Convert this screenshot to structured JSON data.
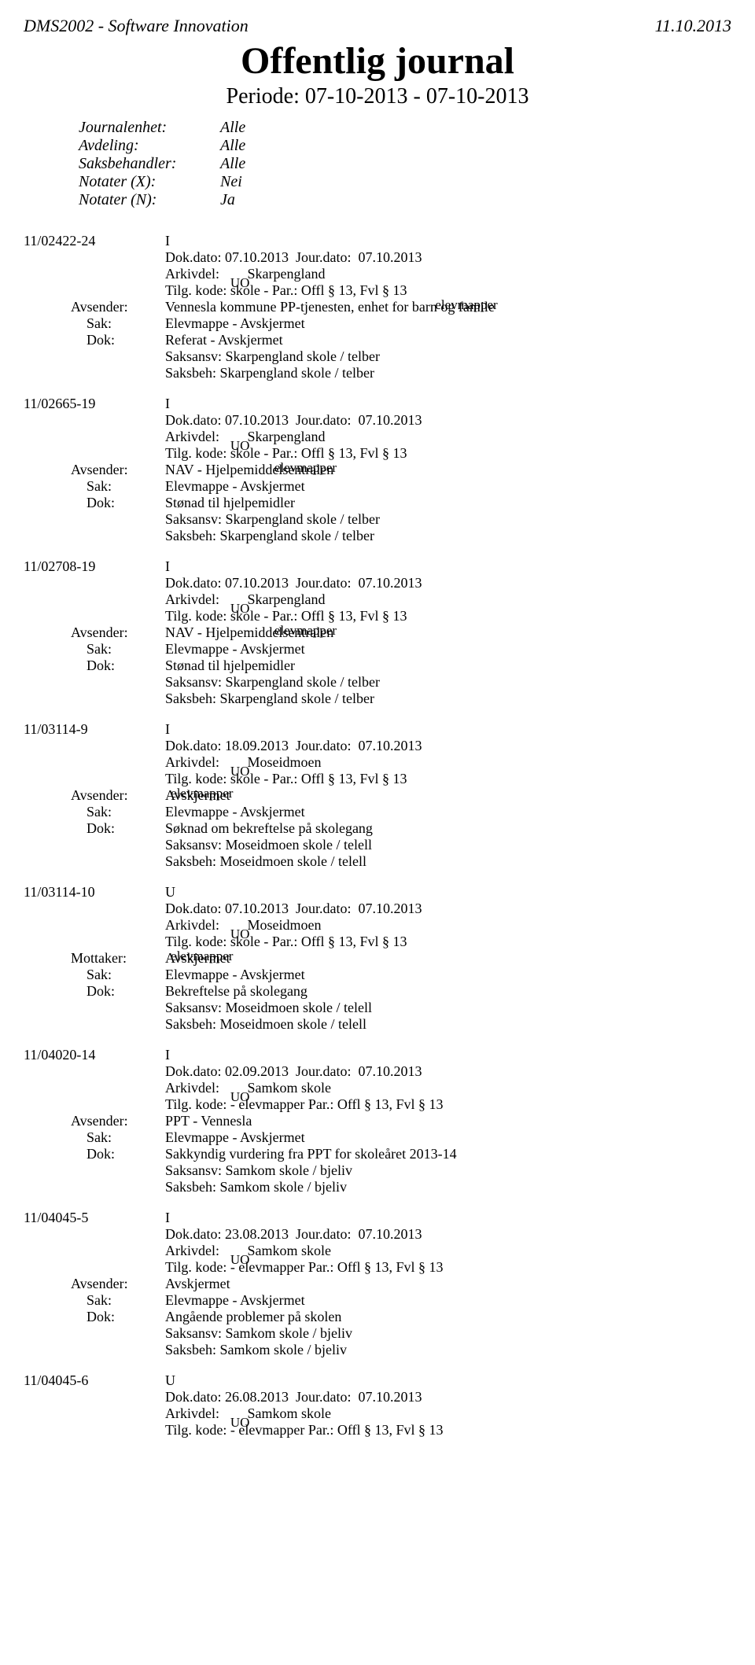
{
  "header": {
    "left": "DMS2002 - Software Innovation",
    "right": "11.10.2013",
    "title": "Offentlig journal",
    "subtitle": "Periode: 07-10-2013 - 07-10-2013"
  },
  "meta": [
    {
      "label": "Journalenhet:",
      "value": "Alle"
    },
    {
      "label": "Avdeling:",
      "value": "Alle"
    },
    {
      "label": "Saksbehandler:",
      "value": "Alle"
    },
    {
      "label": "Notater (X):",
      "value": "Nei"
    },
    {
      "label": "Notater (N):",
      "value": "Ja"
    }
  ],
  "labels": {
    "dokdato": "Dok.dato:",
    "jourdato": "Jour.dato:",
    "arkivdel": "Arkivdel:",
    "tilgkode": "Tilg. kode:",
    "avsender": "Avsender:",
    "mottaker": "Mottaker:",
    "sak": "Sak:",
    "dok": "Dok:",
    "saksansv": "Saksansv:",
    "saksbeh": "Saksbeh:"
  },
  "entries": [
    {
      "id": "11/02422-24",
      "type": "I",
      "dokdato": "07.10.2013",
      "jourdato": "07.10.2013",
      "arkivdel": "Skarpengland",
      "tilg_top": "UO",
      "tilg_bot": "skole -",
      "tilg_rest": "Par.: Offl § 13, Fvl § 13",
      "party_top": "elevmapper",
      "party_label": "Avsender:",
      "party_value": "Vennesla kommune PP-tjenesten, enhet for barn og famile",
      "sak": "Elevmappe - Avskjermet",
      "dok": "Referat - Avskjermet",
      "saksansv": "Skarpengland skole / telber",
      "saksbeh": "Skarpengland skole / telber"
    },
    {
      "id": "11/02665-19",
      "type": "I",
      "dokdato": "07.10.2013",
      "jourdato": "07.10.2013",
      "arkivdel": "Skarpengland",
      "tilg_top": "UO",
      "tilg_bot": "skole -",
      "tilg_rest": "Par.: Offl § 13, Fvl § 13",
      "party_top": "elevmapper",
      "party_label": "Avsender:",
      "party_value": "NAV - Hjelpemiddelsentralen",
      "sak": "Elevmappe - Avskjermet",
      "dok": "Stønad til hjelpemidler",
      "saksansv": "Skarpengland skole / telber",
      "saksbeh": "Skarpengland skole / telber"
    },
    {
      "id": "11/02708-19",
      "type": "I",
      "dokdato": "07.10.2013",
      "jourdato": "07.10.2013",
      "arkivdel": "Skarpengland",
      "tilg_top": "UO",
      "tilg_bot": "skole -",
      "tilg_rest": "Par.: Offl § 13, Fvl § 13",
      "party_top": "elevmapper",
      "party_label": "Avsender:",
      "party_value": "NAV - Hjelpemiddelsentralen",
      "sak": "Elevmappe - Avskjermet",
      "dok": "Stønad til hjelpemidler",
      "saksansv": "Skarpengland skole / telber",
      "saksbeh": "Skarpengland skole / telber"
    },
    {
      "id": "11/03114-9",
      "type": "I",
      "dokdato": "18.09.2013",
      "jourdato": "07.10.2013",
      "arkivdel": "Moseidmoen",
      "tilg_top": "UO",
      "tilg_bot": "skole -",
      "tilg_rest": "Par.: Offl § 13, Fvl § 13",
      "party_top": "elevmapper",
      "party_label": "Avsender:",
      "party_value": "Avskjermet",
      "sak": "Elevmappe - Avskjermet",
      "dok": "Søknad om bekreftelse på skolegang",
      "saksansv": "Moseidmoen skole / telell",
      "saksbeh": "Moseidmoen skole / telell"
    },
    {
      "id": "11/03114-10",
      "type": "U",
      "dokdato": "07.10.2013",
      "jourdato": "07.10.2013",
      "arkivdel": "Moseidmoen",
      "tilg_top": "UO",
      "tilg_bot": "skole -",
      "tilg_rest": "Par.: Offl § 13, Fvl § 13",
      "party_top": "elevmapper",
      "party_label": "Mottaker:",
      "party_value": "Avskjermet",
      "sak": "Elevmappe - Avskjermet",
      "dok": "Bekreftelse på skolegang",
      "saksansv": "Moseidmoen skole / telell",
      "saksbeh": "Moseidmoen skole / telell"
    },
    {
      "id": "11/04020-14",
      "type": "I",
      "dokdato": "02.09.2013",
      "jourdato": "07.10.2013",
      "arkivdel": "Samkom skole",
      "tilg_top": "UO",
      "tilg_bot": "- elevmapper",
      "tilg_rest": "Par.: Offl § 13, Fvl § 13",
      "party_top": "",
      "party_label": "Avsender:",
      "party_value": "PPT - Vennesla",
      "sak": "Elevmappe - Avskjermet",
      "dok": "Sakkyndig vurdering fra PPT for skoleåret 2013-14",
      "saksansv": "Samkom skole / bjeliv",
      "saksbeh": "Samkom skole / bjeliv"
    },
    {
      "id": "11/04045-5",
      "type": "I",
      "dokdato": "23.08.2013",
      "jourdato": "07.10.2013",
      "arkivdel": "Samkom skole",
      "tilg_top": "UO",
      "tilg_bot": "- elevmapper",
      "tilg_rest": "Par.: Offl § 13, Fvl § 13",
      "party_top": "",
      "party_label": "Avsender:",
      "party_value": "Avskjermet",
      "sak": "Elevmappe - Avskjermet",
      "dok": "Angående problemer på skolen",
      "saksansv": "Samkom skole / bjeliv",
      "saksbeh": "Samkom skole / bjeliv"
    },
    {
      "id": "11/04045-6",
      "type": "U",
      "dokdato": "26.08.2013",
      "jourdato": "07.10.2013",
      "arkivdel": "Samkom skole",
      "tilg_top": "UO",
      "tilg_bot": "- elevmapper",
      "tilg_rest": "Par.: Offl § 13, Fvl § 13",
      "party_top": "",
      "party_label": "",
      "party_value": "",
      "sak": "",
      "dok": "",
      "saksansv": "",
      "saksbeh": ""
    }
  ]
}
